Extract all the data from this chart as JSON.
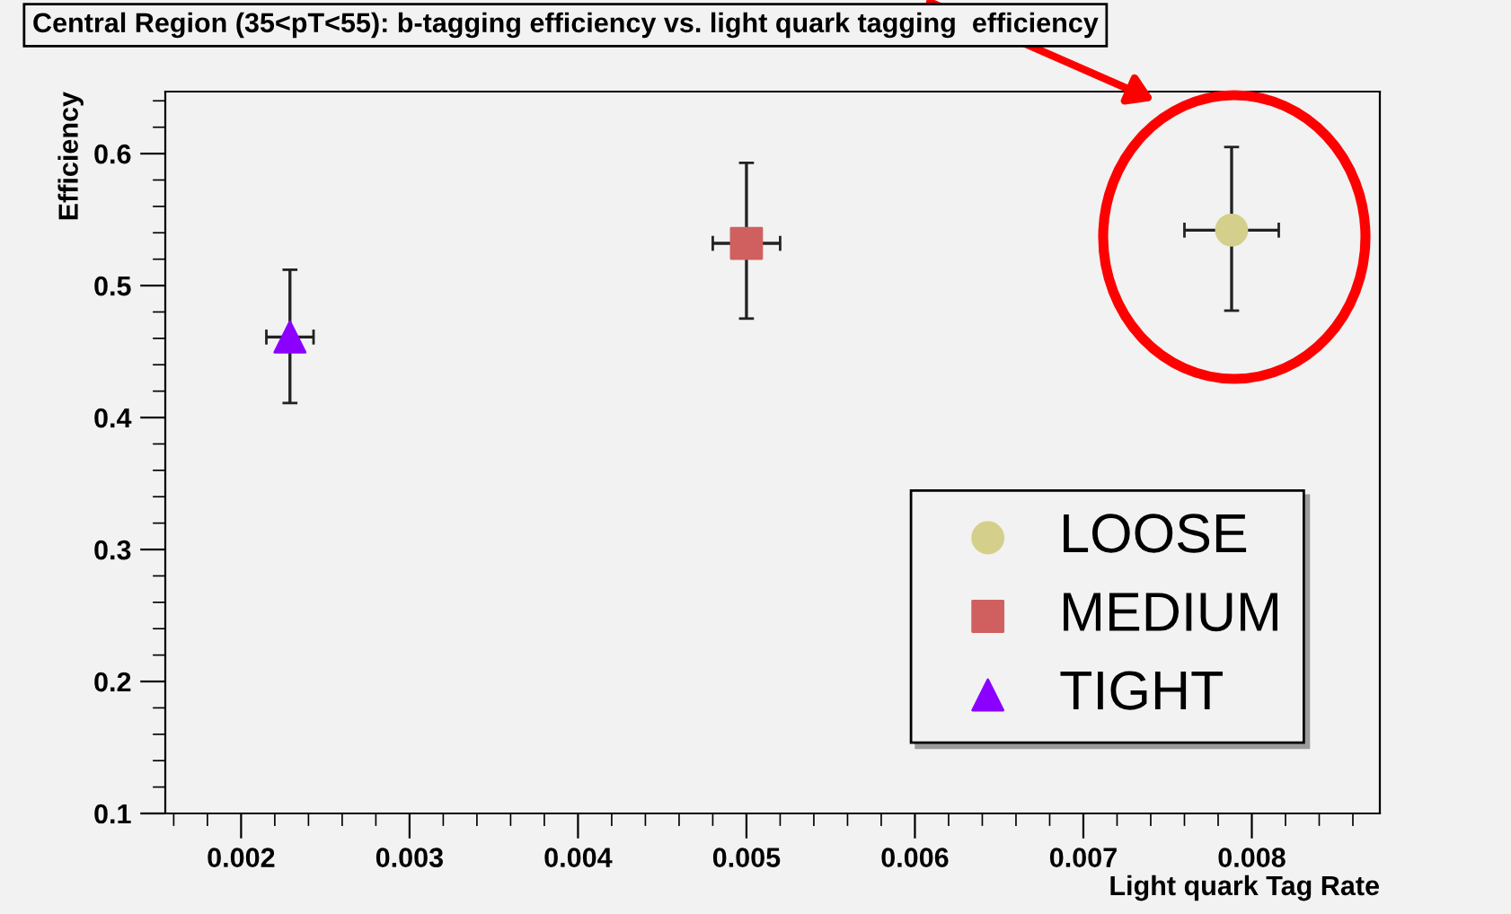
{
  "chart_data": {
    "type": "scatter",
    "title": "Central Region (35<pT<55): b-tagging efficiency vs. light quark tagging  efficiency",
    "xlabel": "Light quark Tag Rate",
    "ylabel": "Efficiency",
    "series": [
      {
        "name": "LOOSE",
        "color": "#d4cf8a",
        "marker": "circle",
        "x": [
          0.00788
        ],
        "values": [
          0.542
        ],
        "errors": [
          [
            0.481,
            0.605
          ]
        ],
        "xerrors": [
          0.00028
        ]
      },
      {
        "name": "MEDIUM",
        "color": "#d06060",
        "marker": "square",
        "x": [
          0.005
        ],
        "values": [
          0.532
        ],
        "errors": [
          [
            0.475,
            0.593
          ]
        ],
        "xerrors": [
          0.0002
        ]
      },
      {
        "name": "TIGHT",
        "color": "#8b00ff",
        "marker": "triangle",
        "x": [
          0.00229
        ],
        "values": [
          0.461
        ],
        "errors": [
          [
            0.411,
            0.512
          ]
        ],
        "xerrors": [
          0.00014
        ]
      }
    ],
    "xlim": [
      0.00155,
      0.00876
    ],
    "ylim": [
      0.1,
      0.647
    ],
    "xticks": [
      0.002,
      0.003,
      0.004,
      0.005,
      0.006,
      0.007,
      0.008
    ],
    "yticks": [
      0.1,
      0.2,
      0.3,
      0.4,
      0.5,
      0.6
    ],
    "grid": false,
    "legend": "bottom right"
  }
}
